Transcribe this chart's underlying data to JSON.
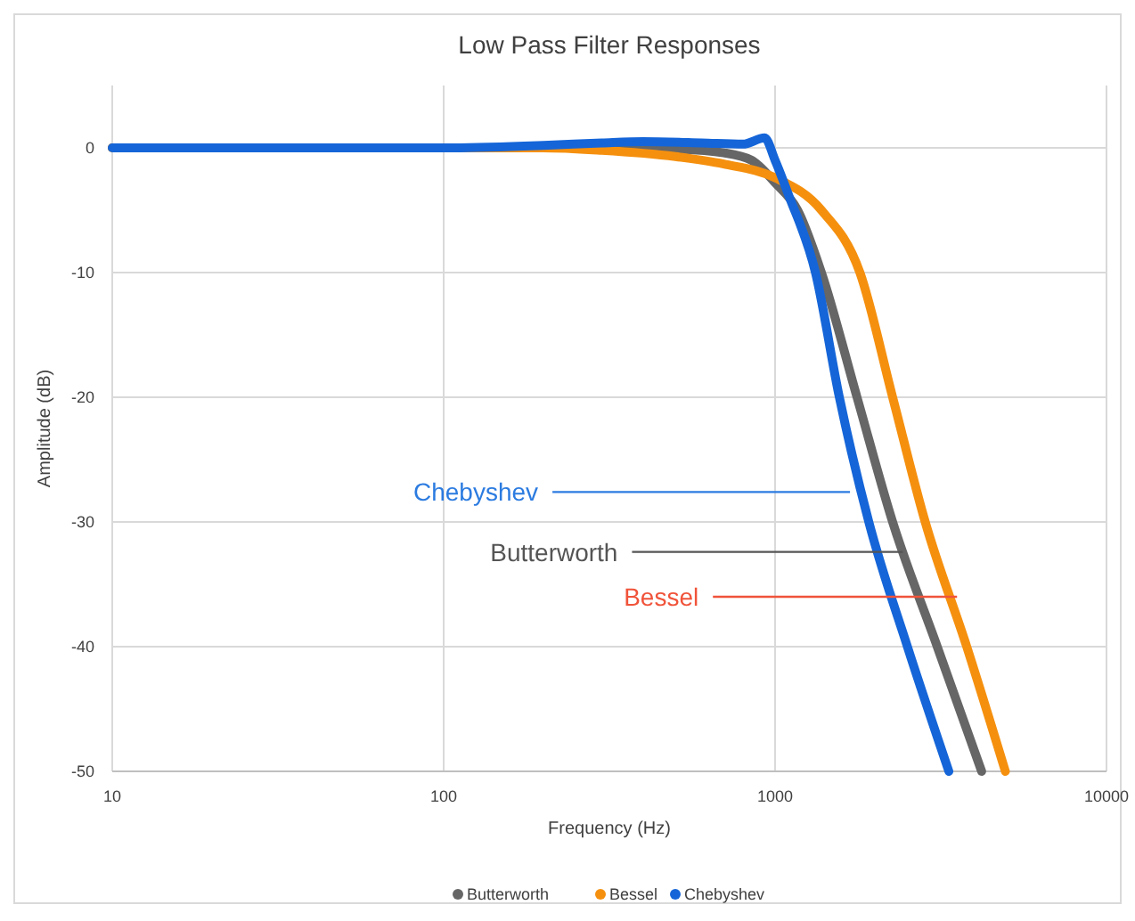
{
  "chart_data": {
    "type": "line",
    "title": "Low Pass Filter Responses",
    "xlabel": "Frequency (Hz)",
    "ylabel": "Amplitude (dB)",
    "log": "x",
    "xlim": [
      10,
      10000
    ],
    "xticks": [
      10,
      100,
      1000,
      10000
    ],
    "ylim": [
      -50,
      5
    ],
    "yticks": [
      -50,
      -40,
      -30,
      -20,
      -10,
      0
    ],
    "grid": true,
    "legend": "bottom",
    "marker": "none",
    "line_style": "solid",
    "series": [
      {
        "name": "Butterworth",
        "color": "#666666",
        "x": [
          10,
          100,
          300,
          500,
          700,
          850,
          1000,
          1170,
          1380,
          1767,
          2263,
          3085,
          4200
        ],
        "values": [
          0,
          0,
          0,
          -0.1,
          -0.4,
          -1,
          -2.8,
          -5,
          -10,
          -20,
          -30,
          -40,
          -50
        ]
      },
      {
        "name": "Bessel",
        "color": "#f5900f",
        "x": [
          10,
          100,
          200,
          300,
          500,
          700,
          1000,
          1380,
          1803,
          2263,
          2838,
          3787,
          4953
        ],
        "values": [
          0,
          0,
          0,
          -0.2,
          -0.7,
          -1.3,
          -2.4,
          -5,
          -10,
          -20,
          -30,
          -40,
          -50
        ]
      },
      {
        "name": "Chebyshev",
        "color": "#1565d8",
        "x": [
          10,
          100,
          200,
          300,
          400,
          600,
          800,
          930,
          1000,
          1099,
          1324,
          1563,
          1918,
          2508,
          3345
        ],
        "values": [
          0,
          0,
          0.2,
          0.4,
          0.5,
          0.4,
          0.3,
          0.8,
          -1,
          -3.8,
          -10,
          -20,
          -30,
          -40,
          -50
        ]
      }
    ],
    "annotations": [
      {
        "text": "Chebyshev",
        "x": 1683,
        "y": -27.6
      },
      {
        "text": "Butterworth",
        "x": 2430,
        "y": -32.4
      },
      {
        "text": "Bessel",
        "x": 3540,
        "y": -36
      }
    ]
  }
}
